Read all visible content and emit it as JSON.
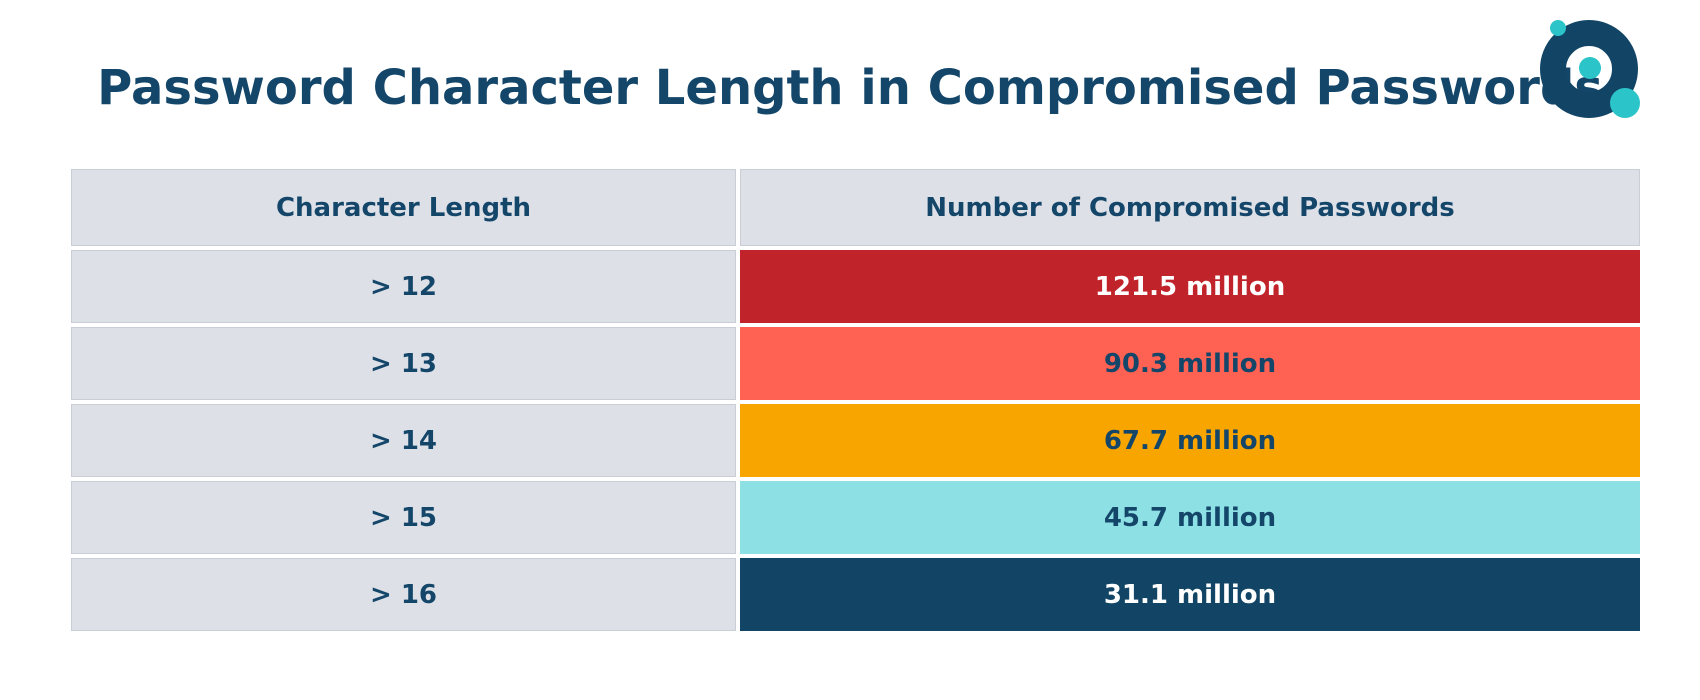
{
  "chart_data": {
    "type": "table",
    "title": "Password Character Length in Compromised Passwords",
    "columns": [
      "Character Length",
      "Number of Compromised Passwords"
    ],
    "rows": [
      {
        "length": "> 12",
        "count": "121.5 million",
        "value_millions": 121.5,
        "color": "#c0242a",
        "text_color": "#ffffff"
      },
      {
        "length": "> 13",
        "count": "90.3 million",
        "value_millions": 90.3,
        "color": "#ff6153",
        "text_color": "#14466a"
      },
      {
        "length": "> 14",
        "count": "67.7 million",
        "value_millions": 67.7,
        "color": "#f9a500",
        "text_color": "#14466a"
      },
      {
        "length": "> 15",
        "count": "45.7 million",
        "value_millions": 45.7,
        "color": "#8de0e4",
        "text_color": "#14466a"
      },
      {
        "length": "> 16",
        "count": "31.1 million",
        "value_millions": 31.1,
        "color": "#124565",
        "text_color": "#ffffff"
      }
    ]
  },
  "logo": {
    "name": "circle-logo-icon",
    "colors": {
      "ring": "#124565",
      "accent": "#2bc4c9"
    }
  }
}
